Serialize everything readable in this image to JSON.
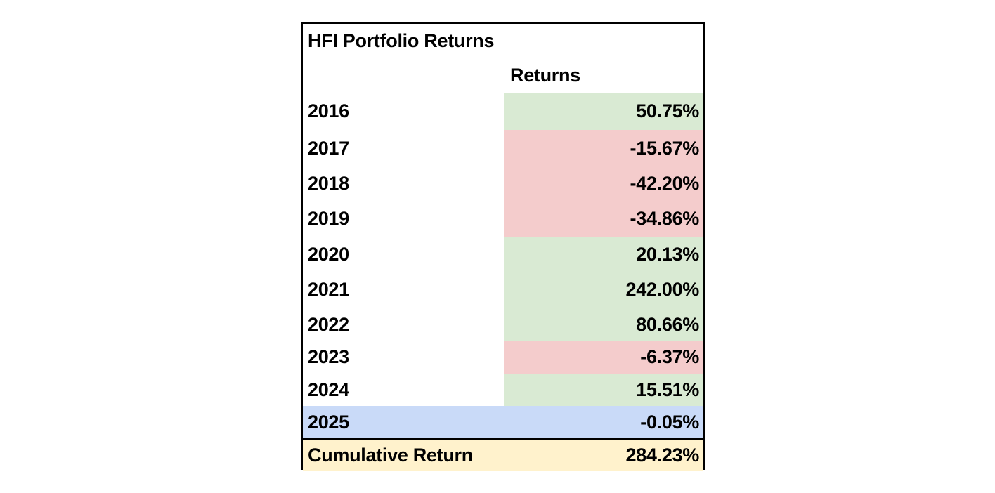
{
  "table": {
    "title": "HFI Portfolio Returns",
    "column_header": "Returns",
    "rows": [
      {
        "year": "2016",
        "return": "50.75%",
        "sign": "pos"
      },
      {
        "year": "2017",
        "return": "-15.67%",
        "sign": "neg"
      },
      {
        "year": "2018",
        "return": "-42.20%",
        "sign": "neg"
      },
      {
        "year": "2019",
        "return": "-34.86%",
        "sign": "neg"
      },
      {
        "year": "2020",
        "return": "20.13%",
        "sign": "pos"
      },
      {
        "year": "2021",
        "return": "242.00%",
        "sign": "pos"
      },
      {
        "year": "2022",
        "return": "80.66%",
        "sign": "pos"
      },
      {
        "year": "2023",
        "return": "-6.37%",
        "sign": "neg"
      },
      {
        "year": "2024",
        "return": "15.51%",
        "sign": "pos"
      },
      {
        "year": "2025",
        "return": "-0.05%",
        "sign": "current"
      }
    ],
    "total": {
      "label": "Cumulative Return",
      "value": "284.23%"
    }
  },
  "colors": {
    "positive_fill": "#d9ead3",
    "negative_fill": "#f4cccc",
    "current_year_fill": "#c9daf8",
    "total_fill": "#fff2cc"
  },
  "chart_data": {
    "type": "table",
    "title": "HFI Portfolio Returns",
    "columns": [
      "",
      "Returns"
    ],
    "categories": [
      "2016",
      "2017",
      "2018",
      "2019",
      "2020",
      "2021",
      "2022",
      "2023",
      "2024",
      "2025"
    ],
    "values": [
      50.75,
      -15.67,
      -42.2,
      -34.86,
      20.13,
      242.0,
      80.66,
      -6.37,
      15.51,
      -0.05
    ],
    "total_label": "Cumulative Return",
    "total_value": 284.23
  }
}
